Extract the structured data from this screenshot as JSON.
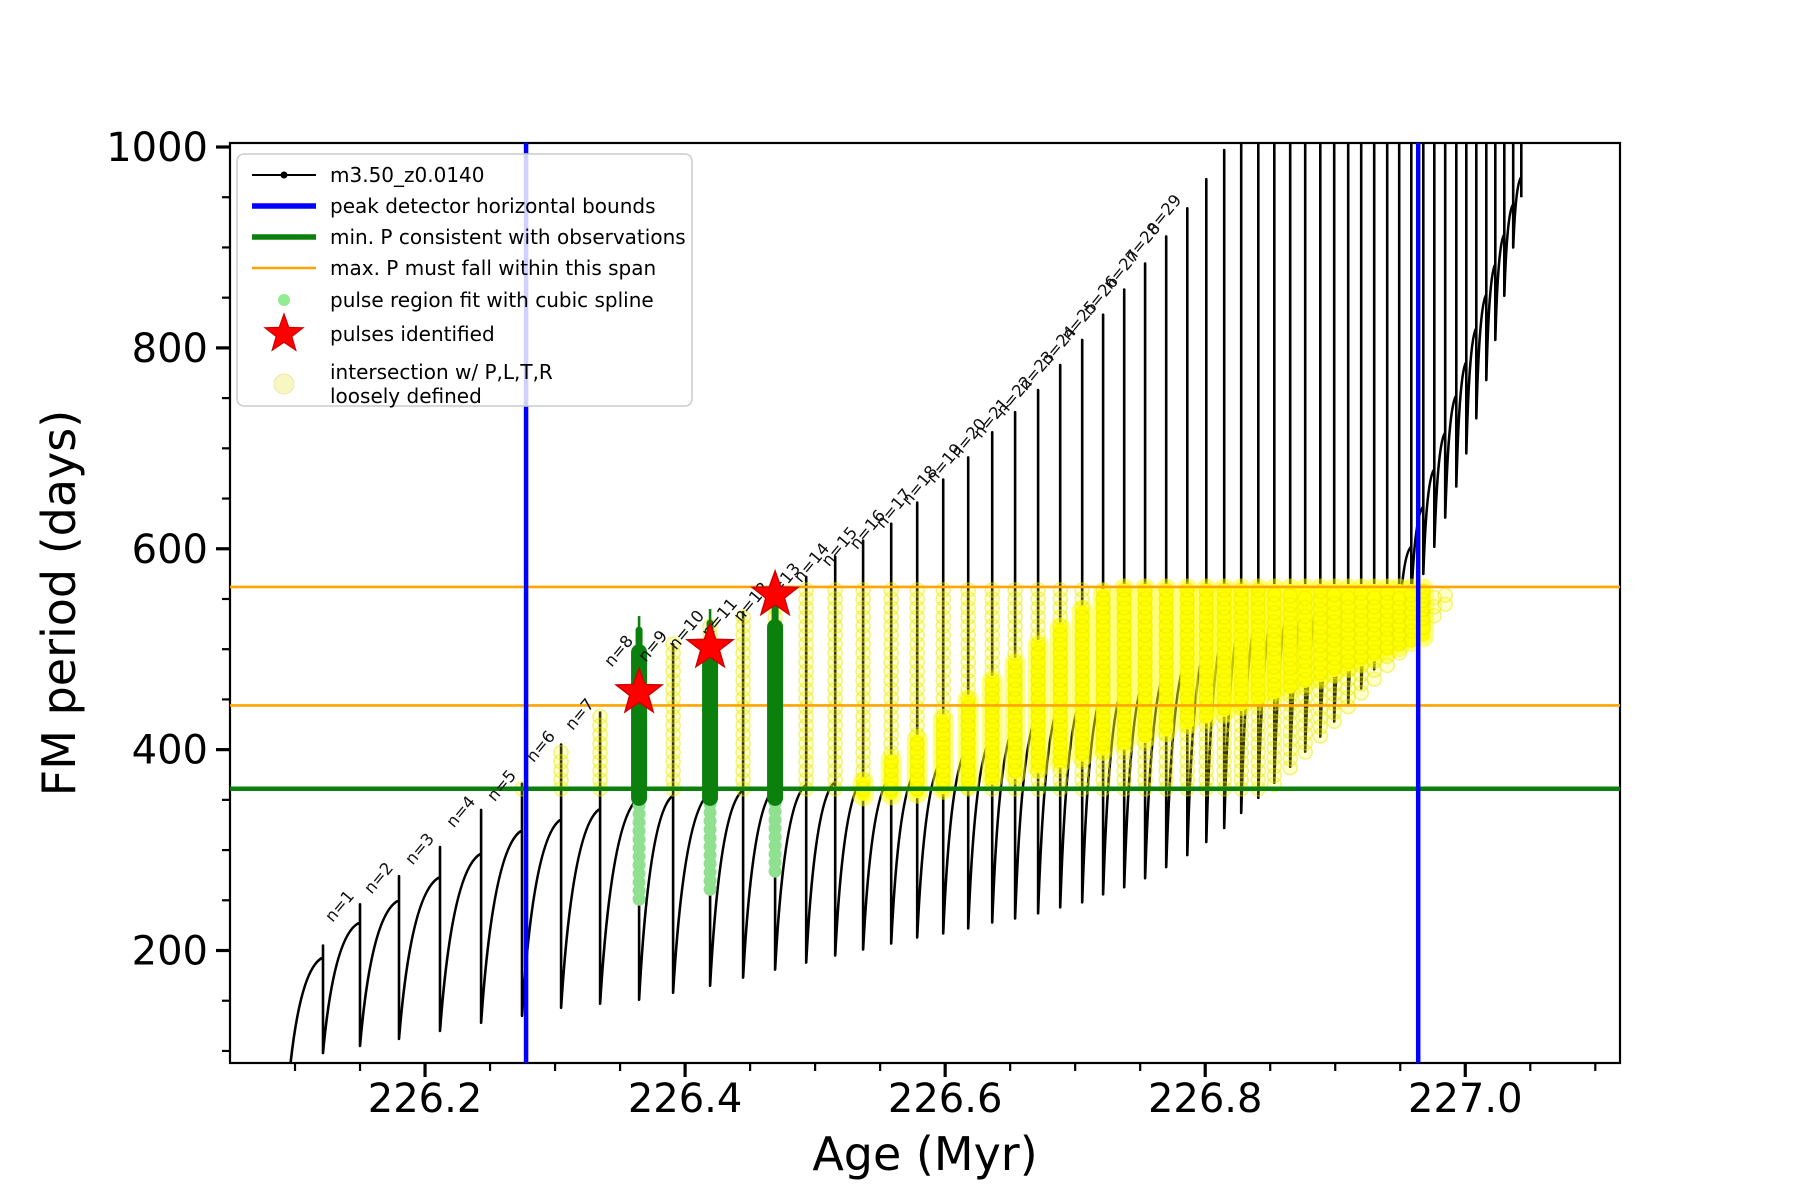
{
  "figure": {
    "background": "#ffffff"
  },
  "legend": {
    "entries": [
      {
        "label": "m3.50_z0.0140",
        "marker": "line-dot",
        "color": "#000000"
      },
      {
        "label": "peak detector horizontal bounds",
        "marker": "thick-line",
        "color": "#0000ff"
      },
      {
        "label": "min. P consistent with observations",
        "marker": "thick-line",
        "color": "#0c800c"
      },
      {
        "label": "max. P must fall within this span",
        "marker": "thin-line",
        "color": "#ffa500"
      },
      {
        "label": "pulse region fit with cubic spline",
        "marker": "small-dot",
        "color": "#90ee90"
      },
      {
        "label": "pulses identified",
        "marker": "star",
        "color": "#ff0000"
      },
      {
        "label": "intersection w/ P,L,T,R",
        "label2": "loosely defined",
        "marker": "big-pale-dot",
        "color": "#f7f7c4"
      }
    ]
  },
  "chart_data": {
    "type": "line",
    "title": "",
    "xlabel": "Age (Myr)",
    "ylabel": "FM period (days)",
    "xlim": [
      226.05,
      227.119
    ],
    "ylim": [
      88,
      1004
    ],
    "xticks": [
      226.2,
      226.4,
      226.6,
      226.8,
      227.0
    ],
    "xtick_labels": [
      "226.2",
      "226.4",
      "226.6",
      "226.8",
      "227.0"
    ],
    "xminor_step": 0.05,
    "yticks": [
      200,
      400,
      600,
      800,
      1000
    ],
    "yminor_step": 50,
    "grid": false,
    "legend_position": "upper-left",
    "series_name": "m3.50_z0.0140",
    "colors": {
      "track": "#000000",
      "bound": "#0000ff",
      "min_p": "#0c800c",
      "max_p": "#ffa500",
      "spline": "#8fe18f",
      "pulse": "#ff0000",
      "intersection": "#ffff00"
    },
    "track_start": {
      "age": 226.0946,
      "period": 62
    },
    "teeth_format": [
      "age_Myr",
      "peak_period_days",
      "trough_period_days"
    ],
    "teeth": [
      [
        226.1215,
        205,
        98
      ],
      [
        226.15,
        246,
        105
      ],
      [
        226.18,
        274,
        112
      ],
      [
        226.2115,
        303,
        120
      ],
      [
        226.2431,
        340,
        128
      ],
      [
        226.2746,
        366,
        135
      ],
      [
        226.3046,
        405,
        143
      ],
      [
        226.3346,
        437,
        147
      ],
      [
        226.3646,
        500,
        151
      ],
      [
        226.3908,
        505,
        158
      ],
      [
        226.4192,
        525,
        165
      ],
      [
        226.4446,
        537,
        173
      ],
      [
        226.4692,
        553,
        181
      ],
      [
        226.4931,
        572,
        188
      ],
      [
        226.5154,
        592,
        195
      ],
      [
        226.5369,
        608,
        201
      ],
      [
        226.5585,
        625,
        207
      ],
      [
        226.5785,
        646,
        213
      ],
      [
        226.5985,
        669,
        217
      ],
      [
        226.6177,
        691,
        222
      ],
      [
        226.6362,
        716,
        228
      ],
      [
        226.6538,
        736,
        232
      ],
      [
        226.6715,
        758,
        237
      ],
      [
        226.6885,
        783,
        243
      ],
      [
        226.7054,
        808,
        248
      ],
      [
        226.7215,
        833,
        256
      ],
      [
        226.7377,
        858,
        263
      ],
      [
        226.7538,
        884,
        272
      ],
      [
        226.77,
        911,
        283
      ],
      [
        226.7862,
        939,
        295
      ],
      [
        226.8008,
        968,
        308
      ],
      [
        226.8146,
        997,
        322
      ],
      [
        226.8277,
        1025,
        337
      ],
      [
        226.8408,
        1055,
        352
      ],
      [
        226.8531,
        1085,
        367
      ],
      [
        226.8654,
        1115,
        383
      ],
      [
        226.8769,
        1145,
        398
      ],
      [
        226.8885,
        1175,
        413
      ],
      [
        226.8992,
        1205,
        428
      ],
      [
        226.91,
        1235,
        444
      ],
      [
        226.92,
        1265,
        461
      ],
      [
        226.93,
        1295,
        480
      ],
      [
        226.94,
        1325,
        501
      ],
      [
        226.9492,
        1355,
        524
      ],
      [
        226.9585,
        1385,
        549
      ],
      [
        226.9677,
        1415,
        575
      ],
      [
        226.9762,
        1445,
        602
      ],
      [
        226.9846,
        1475,
        631
      ],
      [
        226.9931,
        1505,
        662
      ],
      [
        227.0008,
        1535,
        695
      ],
      [
        227.0085,
        1565,
        730
      ],
      [
        227.0162,
        1595,
        768
      ],
      [
        227.0231,
        1625,
        808
      ],
      [
        227.03,
        1655,
        852
      ],
      [
        227.0369,
        1685,
        900
      ],
      [
        227.0431,
        1715,
        950
      ]
    ],
    "n_labels": {
      "first_tooth_index": 1,
      "count": 29,
      "prefix": "n=",
      "rotation_deg": -50
    },
    "shoulder_profile": [
      [
        226.09,
        185
      ],
      [
        226.15,
        228
      ],
      [
        226.21,
        272
      ],
      [
        226.275,
        320
      ],
      [
        226.365,
        352
      ],
      [
        226.47,
        362
      ],
      [
        226.57,
        375
      ],
      [
        226.64,
        415
      ],
      [
        226.72,
        465
      ],
      [
        226.8,
        515
      ],
      [
        226.87,
        548
      ],
      [
        226.95,
        565
      ],
      [
        227.05,
        1000
      ]
    ],
    "vlines": [
      {
        "x": 226.2777,
        "color": "#0000ff",
        "label": "peak detector horizontal bounds"
      },
      {
        "x": 226.9638,
        "color": "#0000ff",
        "label": "peak detector horizontal bounds"
      }
    ],
    "hlines": [
      {
        "y": 361,
        "color": "#0c800c",
        "label": "min. P consistent with observations"
      },
      {
        "y": 444,
        "color": "#ffa500",
        "label": "max. P must fall within this span"
      },
      {
        "y": 562,
        "color": "#ffa500",
        "label": "max. P must fall within this span"
      }
    ],
    "pulses_identified": [
      {
        "age": 226.3646,
        "period": 457
      },
      {
        "age": 226.4192,
        "period": 502
      },
      {
        "age": 226.4692,
        "period": 554
      }
    ],
    "pulse_regions": [
      {
        "age": 226.3646,
        "solid_bottom": 352,
        "solid_top": 505,
        "spike_top": 533,
        "spline_chain_bottom": 251
      },
      {
        "age": 226.4192,
        "solid_bottom": 352,
        "solid_top": 512,
        "spike_top": 540,
        "spline_chain_bottom": 261
      },
      {
        "age": 226.4692,
        "solid_bottom": 352,
        "solid_top": 530,
        "spike_top": 552,
        "spline_chain_bottom": 279
      }
    ],
    "intersection_region": {
      "chain_age_range": [
        226.27,
        226.99
      ],
      "chain_top_max": 559,
      "chain_bottom_base": 361,
      "chain_bottom_rise_start": 226.85,
      "chain_bottom_rise_rate": 1365,
      "solid_age_range": [
        226.53,
        226.975
      ],
      "solid_top_base": 361,
      "solid_top_rate": 1014,
      "solid_top_max": 560,
      "solid_bottom_base": 361,
      "solid_bottom_rise_start": 226.565,
      "solid_bottom_rise_span": 0.408,
      "solid_bottom_rise_amp": 160,
      "solid_bottom_rise_pow": 1.35
    }
  }
}
